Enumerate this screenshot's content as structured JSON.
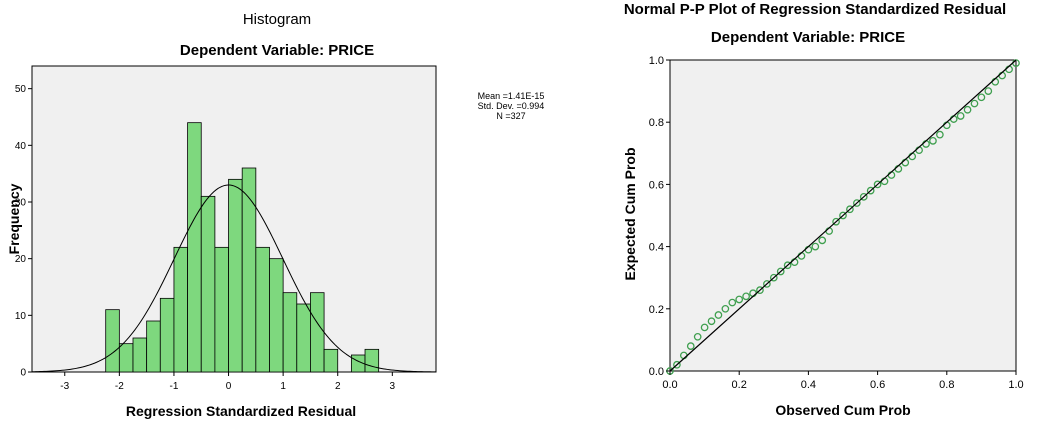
{
  "chart_data": [
    {
      "type": "bar",
      "subtype": "histogram",
      "title": "Histogram",
      "subtitle": "Dependent Variable: PRICE",
      "xlabel": "Regression Standardized Residual",
      "ylabel": "Frequency",
      "xlim": [
        -3.6,
        3.8
      ],
      "ylim": [
        0,
        54
      ],
      "xticks": [
        -3,
        -2,
        -1,
        0,
        1,
        2,
        3
      ],
      "yticks": [
        0,
        10,
        20,
        30,
        40,
        50
      ],
      "bin_width": 0.25,
      "bins_start": [
        -2.25,
        -2.0,
        -1.75,
        -1.5,
        -1.25,
        -1.0,
        -0.75,
        -0.5,
        -0.25,
        0.0,
        0.25,
        0.5,
        0.75,
        1.0,
        1.25,
        1.5,
        1.75,
        2.0,
        2.25,
        2.5
      ],
      "values": [
        11,
        5,
        6,
        9,
        13,
        22,
        44,
        31,
        22,
        34,
        36,
        22,
        20,
        14,
        12,
        14,
        4,
        0,
        3,
        4
      ],
      "bar_color": "#7ed87e",
      "normal_curve": {
        "mean": 0.0,
        "sd": 0.994,
        "peak": 33
      },
      "stats": {
        "mean": "Mean =1.41E-15",
        "sd": "Std. Dev. =0.994",
        "n": "N =327"
      },
      "grid": false,
      "background": "#f0f0f0"
    },
    {
      "type": "scatter",
      "subtype": "pp-plot",
      "title": "Normal P-P Plot of Regression Standardized Residual",
      "subtitle": "Dependent Variable: PRICE",
      "xlabel": "Observed Cum Prob",
      "ylabel": "Expected Cum Prob",
      "xlim": [
        0,
        1
      ],
      "ylim": [
        0,
        1
      ],
      "xticks": [
        0.0,
        0.2,
        0.4,
        0.6,
        0.8,
        1.0
      ],
      "yticks": [
        0.0,
        0.2,
        0.4,
        0.6,
        0.8,
        1.0
      ],
      "xtick_labels": [
        "0.0",
        "0.2",
        "0.4",
        "0.6",
        "0.8",
        "1.0"
      ],
      "ytick_labels": [
        "0.0",
        "0.2",
        "0.4",
        "0.6",
        "0.8",
        "1.0"
      ],
      "reference_line": [
        [
          0,
          0
        ],
        [
          1,
          1
        ]
      ],
      "point_color": "#3f9f4f",
      "points_x": [
        0.0,
        0.02,
        0.04,
        0.06,
        0.08,
        0.1,
        0.12,
        0.14,
        0.16,
        0.18,
        0.2,
        0.22,
        0.24,
        0.26,
        0.28,
        0.3,
        0.32,
        0.34,
        0.36,
        0.38,
        0.4,
        0.42,
        0.44,
        0.46,
        0.48,
        0.5,
        0.52,
        0.54,
        0.56,
        0.58,
        0.6,
        0.62,
        0.64,
        0.66,
        0.68,
        0.7,
        0.72,
        0.74,
        0.76,
        0.78,
        0.8,
        0.82,
        0.84,
        0.86,
        0.88,
        0.9,
        0.92,
        0.94,
        0.96,
        0.98,
        1.0
      ],
      "points_y": [
        0.0,
        0.02,
        0.05,
        0.08,
        0.11,
        0.14,
        0.16,
        0.18,
        0.2,
        0.22,
        0.23,
        0.24,
        0.25,
        0.26,
        0.28,
        0.3,
        0.32,
        0.34,
        0.35,
        0.37,
        0.39,
        0.4,
        0.42,
        0.45,
        0.48,
        0.5,
        0.52,
        0.54,
        0.56,
        0.58,
        0.6,
        0.61,
        0.63,
        0.65,
        0.67,
        0.69,
        0.71,
        0.73,
        0.74,
        0.76,
        0.79,
        0.81,
        0.82,
        0.84,
        0.86,
        0.88,
        0.9,
        0.93,
        0.95,
        0.97,
        0.99
      ],
      "grid": false,
      "background": "#f0f0f0"
    }
  ]
}
